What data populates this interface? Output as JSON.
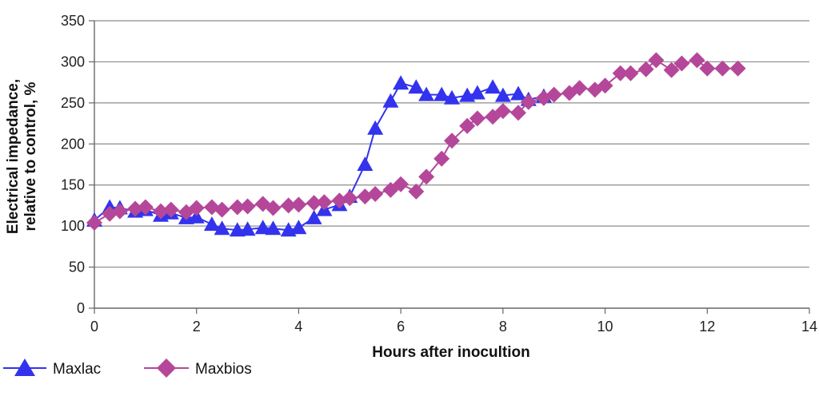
{
  "chart_data": {
    "type": "line",
    "title": "",
    "xlabel": "Hours after inocultion",
    "ylabel_lines": [
      "Electrical impedance,",
      "relative to control, %"
    ],
    "xlim": [
      0,
      14
    ],
    "ylim": [
      0,
      350
    ],
    "x_ticks": [
      0,
      2,
      4,
      6,
      8,
      10,
      12,
      14
    ],
    "y_ticks": [
      0,
      50,
      100,
      150,
      200,
      250,
      300,
      350
    ],
    "grid": "horizontal",
    "legend_position": "bottom-left",
    "series": [
      {
        "name": "Maxlac",
        "color": "#3333ee",
        "marker": "triangle",
        "points": [
          [
            0.0,
            107
          ],
          [
            0.3,
            123
          ],
          [
            0.5,
            122
          ],
          [
            0.8,
            118
          ],
          [
            1.0,
            120
          ],
          [
            1.3,
            113
          ],
          [
            1.5,
            116
          ],
          [
            1.8,
            110
          ],
          [
            2.0,
            111
          ],
          [
            2.3,
            102
          ],
          [
            2.5,
            97
          ],
          [
            2.8,
            95
          ],
          [
            3.0,
            96
          ],
          [
            3.3,
            98
          ],
          [
            3.5,
            97
          ],
          [
            3.8,
            95
          ],
          [
            4.0,
            98
          ],
          [
            4.3,
            110
          ],
          [
            4.5,
            120
          ],
          [
            4.8,
            126
          ],
          [
            5.0,
            136
          ],
          [
            5.3,
            175
          ],
          [
            5.5,
            219
          ],
          [
            5.8,
            252
          ],
          [
            6.0,
            274
          ],
          [
            6.3,
            269
          ],
          [
            6.5,
            260
          ],
          [
            6.8,
            260
          ],
          [
            7.0,
            256
          ],
          [
            7.3,
            259
          ],
          [
            7.5,
            262
          ],
          [
            7.8,
            269
          ],
          [
            8.0,
            259
          ],
          [
            8.3,
            261
          ],
          [
            8.5,
            254
          ],
          [
            8.8,
            258
          ]
        ]
      },
      {
        "name": "Maxbios",
        "color": "#b5479a",
        "marker": "diamond",
        "points": [
          [
            0.0,
            104
          ],
          [
            0.3,
            115
          ],
          [
            0.5,
            118
          ],
          [
            0.8,
            121
          ],
          [
            1.0,
            123
          ],
          [
            1.3,
            118
          ],
          [
            1.5,
            120
          ],
          [
            1.8,
            117
          ],
          [
            2.0,
            122
          ],
          [
            2.3,
            123
          ],
          [
            2.5,
            120
          ],
          [
            2.8,
            123
          ],
          [
            3.0,
            124
          ],
          [
            3.3,
            127
          ],
          [
            3.5,
            122
          ],
          [
            3.8,
            125
          ],
          [
            4.0,
            126
          ],
          [
            4.3,
            128
          ],
          [
            4.5,
            129
          ],
          [
            4.8,
            131
          ],
          [
            5.0,
            134
          ],
          [
            5.3,
            136
          ],
          [
            5.5,
            139
          ],
          [
            5.8,
            144
          ],
          [
            6.0,
            151
          ],
          [
            6.3,
            142
          ],
          [
            6.5,
            160
          ],
          [
            6.8,
            182
          ],
          [
            7.0,
            204
          ],
          [
            7.3,
            222
          ],
          [
            7.5,
            231
          ],
          [
            7.8,
            233
          ],
          [
            8.0,
            240
          ],
          [
            8.3,
            238
          ],
          [
            8.5,
            251
          ],
          [
            8.8,
            256
          ],
          [
            9.0,
            260
          ],
          [
            9.3,
            262
          ],
          [
            9.5,
            268
          ],
          [
            9.8,
            266
          ],
          [
            10.0,
            271
          ],
          [
            10.3,
            286
          ],
          [
            10.5,
            286
          ],
          [
            10.8,
            291
          ],
          [
            11.0,
            302
          ],
          [
            11.3,
            290
          ],
          [
            11.5,
            298
          ],
          [
            11.8,
            302
          ],
          [
            12.0,
            292
          ],
          [
            12.3,
            292
          ],
          [
            12.6,
            292
          ]
        ]
      }
    ]
  }
}
